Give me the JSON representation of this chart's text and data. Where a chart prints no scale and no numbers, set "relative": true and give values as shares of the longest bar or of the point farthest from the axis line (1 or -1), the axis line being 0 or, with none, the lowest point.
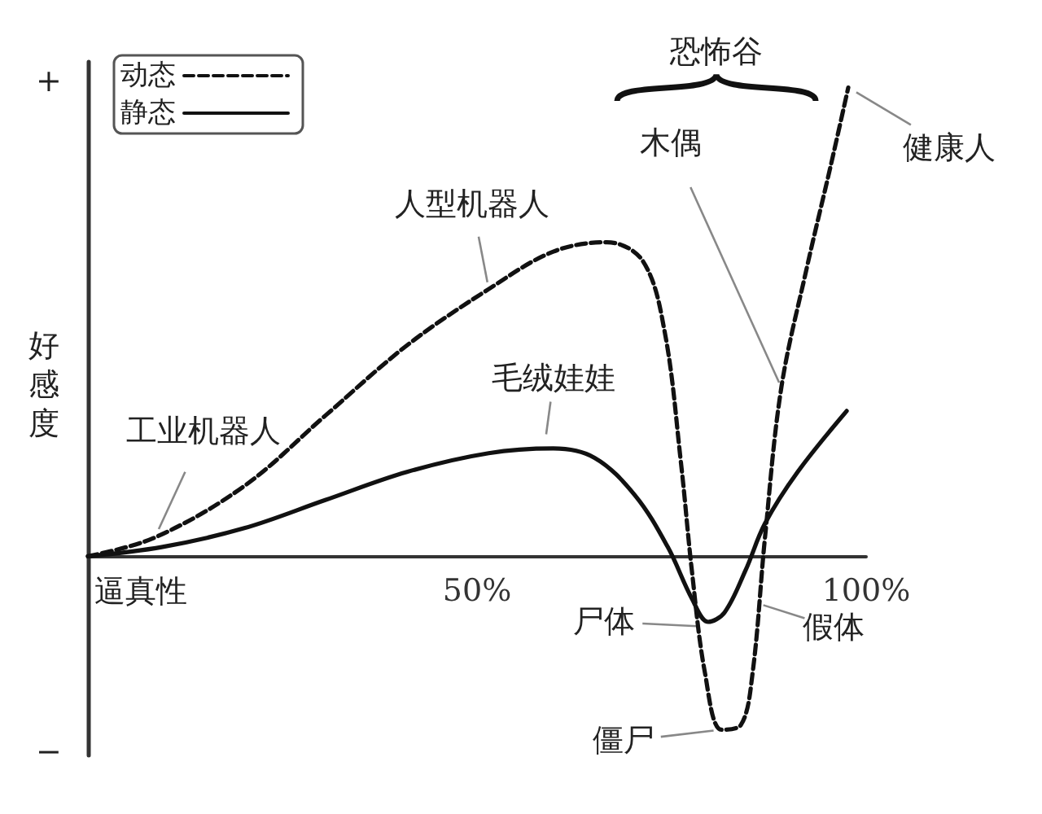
{
  "chart_data": {
    "type": "line",
    "xlabel": "逼真性",
    "ylabel": "好感度",
    "relative": true,
    "xlim": [
      0,
      100
    ],
    "xticks": [
      {
        "value": 50,
        "label": "50%"
      },
      {
        "value": 100,
        "label": "100%"
      }
    ],
    "legend": "top left",
    "marker": "none",
    "grid": false,
    "series": [
      {
        "name": "动态",
        "color": "#111111",
        "line_style": "dashed",
        "x": [
          0,
          8.6,
          20.1,
          30.5,
          41,
          51.5,
          59.8,
          66.7,
          71.3,
          74.1,
          76.2,
          77.6,
          79.3,
          81.4,
          83.9,
          85.4,
          87,
          89.1,
          92.3,
          95.4,
          97.7
        ],
        "values": [
          0,
          0.04,
          0.15,
          0.3,
          0.45,
          0.57,
          0.65,
          0.67,
          0.63,
          0.48,
          0.2,
          -0.03,
          -0.25,
          -0.37,
          -0.36,
          -0.25,
          0.04,
          0.36,
          0.61,
          0.83,
          1
        ]
      },
      {
        "name": "静态",
        "color": "#111111",
        "line_style": "solid",
        "x": [
          0,
          9.6,
          20.1,
          30.5,
          41,
          51.5,
          59.8,
          65.1,
          70.3,
          74.5,
          77.6,
          79.7,
          81.8,
          84.5,
          87,
          91.2,
          97.5
        ],
        "values": [
          0,
          0.02,
          0.06,
          0.12,
          0.18,
          0.22,
          0.23,
          0.21,
          0.13,
          0.02,
          -0.09,
          -0.14,
          -0.12,
          -0.03,
          0.07,
          0.18,
          0.31
        ]
      }
    ],
    "annotations": [
      {
        "text": "工业机器人",
        "x": 8.6,
        "y": 0.04
      },
      {
        "text": "人型机器人",
        "x": 51.5,
        "y": 0.57
      },
      {
        "text": "毛绒娃娃",
        "x": 58.8,
        "y": 0.25
      },
      {
        "text": "木偶",
        "x": 89.1,
        "y": 0.36
      },
      {
        "text": "健康人",
        "x": 97.7,
        "y": 1
      },
      {
        "text": "尸体",
        "x": 79.3,
        "y": -0.15
      },
      {
        "text": "假体",
        "x": 86,
        "y": -0.1
      },
      {
        "text": "僵尸",
        "x": 81.4,
        "y": -0.37
      },
      "恐怖谷",
      "+",
      "−"
    ]
  }
}
